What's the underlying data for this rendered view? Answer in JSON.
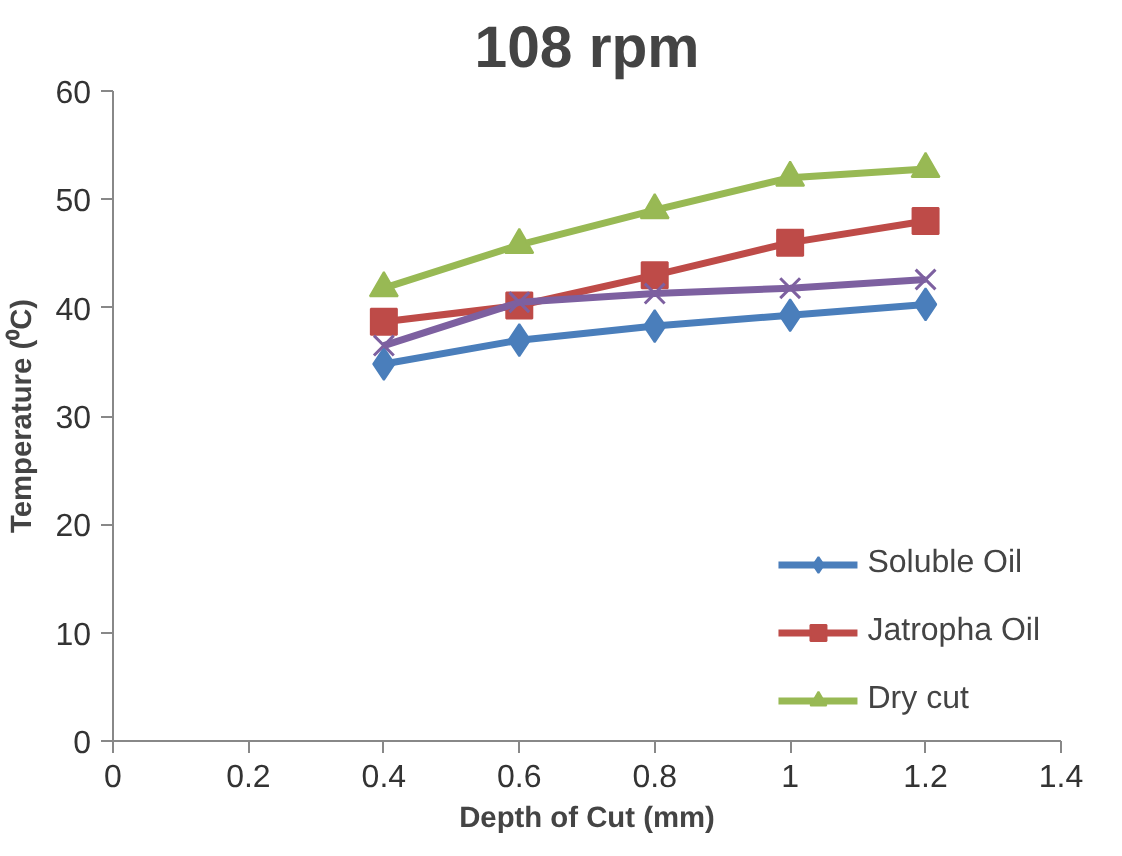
{
  "chart_data": {
    "type": "line",
    "title": "108 rpm",
    "xlabel": "Depth of Cut (mm)",
    "ylabel": "Temperature (⁰C)",
    "x": [
      0.4,
      0.6,
      0.8,
      1.0,
      1.2
    ],
    "series": [
      {
        "name": "Soluble Oil",
        "color": "#4a7ebb",
        "marker": "diamond",
        "values": [
          34.8,
          37.0,
          38.3,
          39.3,
          40.3
        ]
      },
      {
        "name": "Jatropha Oil",
        "color": "#be4b48",
        "marker": "square",
        "values": [
          38.7,
          40.2,
          43.0,
          46.0,
          48.0
        ]
      },
      {
        "name": "Dry cut",
        "color": "#98b954",
        "marker": "triangle",
        "values": [
          41.8,
          45.8,
          49.0,
          52.0,
          52.8
        ]
      },
      {
        "color": "#7d60a0",
        "marker": "cross",
        "values": [
          36.5,
          40.5,
          41.3,
          41.8,
          42.6
        ]
      }
    ],
    "xlim": [
      0,
      1.4
    ],
    "xticks": [
      0,
      0.2,
      0.4,
      0.6,
      0.8,
      1,
      1.2,
      1.4
    ],
    "ylim": [
      0,
      60
    ],
    "yticks": [
      0,
      10,
      20,
      30,
      40,
      50,
      60
    ],
    "grid": false,
    "legend": "bottom right",
    "line_style": "solid"
  }
}
